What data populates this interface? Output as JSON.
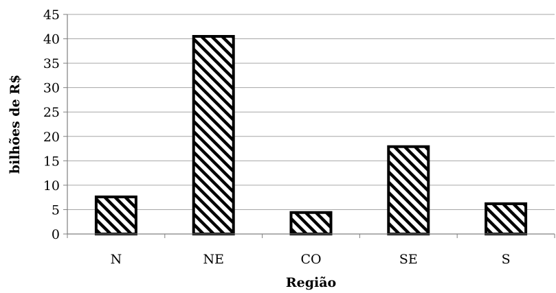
{
  "chart_data": {
    "type": "bar",
    "categories": [
      "N",
      "NE",
      "CO",
      "SE",
      "S"
    ],
    "values": [
      7.6,
      40.5,
      4.4,
      17.9,
      6.2
    ],
    "title": "",
    "xlabel": "Região",
    "ylabel": "bilhões de R$",
    "ylim": [
      0,
      45
    ],
    "yticks": [
      0,
      5,
      10,
      15,
      20,
      25,
      30,
      35,
      40,
      45
    ],
    "grid": true,
    "legend": "none",
    "bar_fill": "diagonal-hatch",
    "colors": {
      "gridline": "#a6a6a6",
      "bar_stroke": "#000000",
      "hatch": "#000000",
      "background": "#ffffff"
    }
  }
}
